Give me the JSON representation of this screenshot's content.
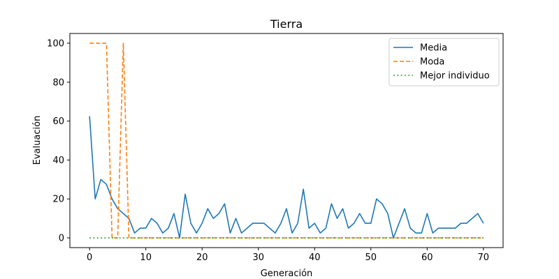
{
  "chart_data": {
    "type": "line",
    "title": "Tierra",
    "xlabel": "Generación",
    "ylabel": "Evaluación",
    "xlim": [
      -3.5,
      73.5
    ],
    "ylim": [
      -5,
      105
    ],
    "xticks": [
      0,
      10,
      20,
      30,
      40,
      50,
      60,
      70
    ],
    "yticks": [
      0,
      20,
      40,
      60,
      80,
      100
    ],
    "grid": false,
    "legend_position": "top-right",
    "x": [
      0,
      1,
      2,
      3,
      4,
      5,
      6,
      7,
      8,
      9,
      10,
      11,
      12,
      13,
      14,
      15,
      16,
      17,
      18,
      19,
      20,
      21,
      22,
      23,
      24,
      25,
      26,
      27,
      28,
      29,
      30,
      31,
      32,
      33,
      34,
      35,
      36,
      37,
      38,
      39,
      40,
      41,
      42,
      43,
      44,
      45,
      46,
      47,
      48,
      49,
      50,
      51,
      52,
      53,
      54,
      55,
      56,
      57,
      58,
      59,
      60,
      61,
      62,
      63,
      64,
      65,
      66,
      67,
      68,
      69,
      70
    ],
    "series": [
      {
        "name": "Media",
        "color": "#1f77b4",
        "style": "solid",
        "values": [
          62.5,
          20,
          30,
          27.5,
          20,
          15,
          12.5,
          10,
          2.5,
          5,
          5,
          10,
          7.5,
          2.5,
          5,
          12.5,
          0,
          22.5,
          7.5,
          2.5,
          7.5,
          15,
          10,
          12.5,
          17.5,
          2.5,
          10,
          2.5,
          5,
          7.5,
          7.5,
          7.5,
          5,
          2.5,
          7.5,
          15,
          2.5,
          7.5,
          25,
          5,
          7.5,
          2.5,
          5,
          17.5,
          10,
          15,
          5,
          7.5,
          12.5,
          7.5,
          7.5,
          20,
          17.5,
          12.5,
          0,
          7.5,
          15,
          5,
          2.5,
          2.5,
          12.5,
          2.5,
          5,
          5,
          5,
          5,
          7.5,
          7.5,
          10,
          12.5,
          7.5
        ]
      },
      {
        "name": "Moda",
        "color": "#ff7f0e",
        "style": "dashed",
        "values": [
          100,
          100,
          100,
          100,
          0,
          0,
          100,
          0,
          0,
          0,
          0,
          0,
          0,
          0,
          0,
          0,
          0,
          0,
          0,
          0,
          0,
          0,
          0,
          0,
          0,
          0,
          0,
          0,
          0,
          0,
          0,
          0,
          0,
          0,
          0,
          0,
          0,
          0,
          0,
          0,
          0,
          0,
          0,
          0,
          0,
          0,
          0,
          0,
          0,
          0,
          0,
          0,
          0,
          0,
          0,
          0,
          0,
          0,
          0,
          0,
          0,
          0,
          0,
          0,
          0,
          0,
          0,
          0,
          0,
          0,
          0
        ]
      },
      {
        "name": "Mejor individuo",
        "color": "#2ca02c",
        "style": "dotted",
        "values": [
          0,
          0,
          0,
          0,
          0,
          0,
          0,
          0,
          0,
          0,
          0,
          0,
          0,
          0,
          0,
          0,
          0,
          0,
          0,
          0,
          0,
          0,
          0,
          0,
          0,
          0,
          0,
          0,
          0,
          0,
          0,
          0,
          0,
          0,
          0,
          0,
          0,
          0,
          0,
          0,
          0,
          0,
          0,
          0,
          0,
          0,
          0,
          0,
          0,
          0,
          0,
          0,
          0,
          0,
          0,
          0,
          0,
          0,
          0,
          0,
          0,
          0,
          0,
          0,
          0,
          0,
          0,
          0,
          0,
          0,
          0
        ]
      }
    ]
  }
}
